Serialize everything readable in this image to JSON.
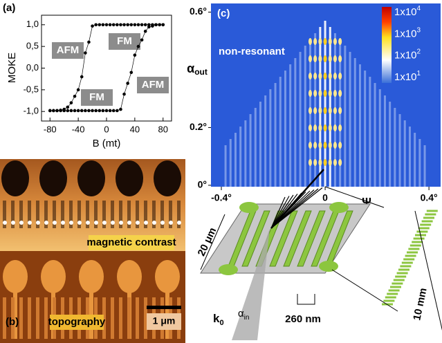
{
  "chart_data": [
    {
      "type": "line",
      "panel_label": "(a)",
      "xlabel": "B (mt)",
      "ylabel": "MOKE",
      "color": "#000000",
      "series": [
        {
          "x": [
            80,
            75,
            70,
            65,
            60,
            55,
            50,
            45,
            40,
            35,
            30,
            25,
            20,
            15,
            10,
            5,
            0,
            -5,
            -10,
            -15,
            -20,
            -25,
            -30,
            -35,
            -40,
            -45,
            -50,
            -55,
            -60,
            -65,
            -70,
            -75,
            -80
          ],
          "values": [
            1,
            1,
            1,
            1,
            1,
            1,
            1,
            1,
            1,
            1,
            1,
            1,
            1,
            1,
            1,
            1,
            1,
            1,
            1,
            1,
            0.97,
            0.6,
            0.35,
            -0.2,
            -0.5,
            -0.65,
            -0.8,
            -0.9,
            -0.95,
            -0.97,
            -0.98,
            -0.98,
            -0.98
          ]
        },
        {
          "x": [
            -80,
            -75,
            -70,
            -65,
            -60,
            -55,
            -50,
            -45,
            -40,
            -35,
            -30,
            -25,
            -20,
            -15,
            -10,
            -5,
            0,
            5,
            10,
            15,
            20,
            25,
            30,
            35,
            40,
            45,
            50,
            55,
            60,
            65,
            70,
            75,
            80
          ],
          "values": [
            -0.98,
            -0.98,
            -0.98,
            -0.98,
            -0.98,
            -0.98,
            -0.98,
            -0.98,
            -0.98,
            -0.98,
            -0.98,
            -0.98,
            -0.98,
            -0.98,
            -0.98,
            -0.98,
            -0.98,
            -0.98,
            -0.98,
            -0.98,
            -0.95,
            -0.6,
            -0.35,
            -0.1,
            0.3,
            0.5,
            0.65,
            0.85,
            0.95,
            0.97,
            1,
            1,
            1
          ]
        }
      ],
      "xlim": [
        -92,
        92
      ],
      "xticks": [
        -80,
        -40,
        0,
        40,
        80
      ],
      "ylim": [
        -1.22,
        1.22
      ],
      "yticks": [
        {
          "value": -1,
          "label": "-1,0"
        },
        {
          "value": -0.5,
          "label": "-0,5"
        },
        {
          "value": 0,
          "label": "0,0"
        },
        {
          "value": 0.5,
          "label": "0,5"
        },
        {
          "value": 1,
          "label": "1,0"
        }
      ],
      "annotations": [
        "AFM",
        "FM",
        "FM",
        "AFM"
      ]
    },
    {
      "type": "heatmap",
      "panel_label": "(c)",
      "annotation": "non-resonant",
      "xlabel": "Ψ",
      "ylabel": {
        "text": "α",
        "sub": "out"
      },
      "xlim": [
        -0.44,
        0.445
      ],
      "xticks": [
        {
          "value": -0.4,
          "label": "-0.4°"
        },
        0,
        {
          "value": 0.4,
          "label": "0.4°"
        }
      ],
      "ylim": [
        -0.005,
        0.63
      ],
      "yticks": [
        {
          "value": 0,
          "label": "0°"
        },
        {
          "value": 0.2,
          "label": "0.2°"
        },
        {
          "value": 0.6,
          "label": "0.6°"
        }
      ],
      "colorbar": [
        {
          "base": "1x10",
          "exponent": 4
        },
        {
          "base": "1x10",
          "exponent": 3
        },
        {
          "base": "1x10",
          "exponent": 2
        },
        {
          "base": "1x10",
          "exponent": 1
        }
      ]
    }
  ],
  "panel_b": {
    "label": "(b)",
    "top_caption": "magnetic contrast",
    "bottom_caption": "topography",
    "scale_bar": "1 μm"
  },
  "diagram": {
    "width_label": "20 μm",
    "length_label": "10 mm",
    "period_label": "260 nm",
    "wavevector": {
      "text": "k",
      "sub": "0"
    },
    "incidence": {
      "text": "α",
      "sub": "in"
    }
  }
}
